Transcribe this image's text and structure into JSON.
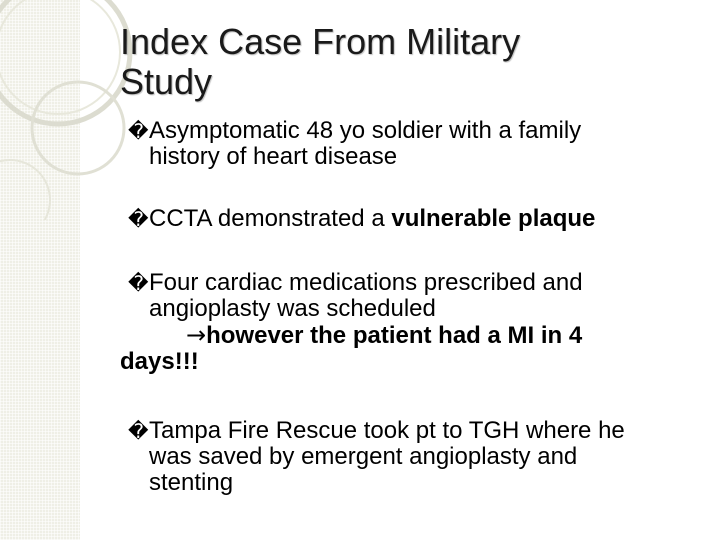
{
  "slide": {
    "title_line1": "Index Case From Military",
    "title_line2": "Study",
    "bullet_glyph": "�",
    "bullets": {
      "b1": {
        "line1": "Asymptomatic 48 yo soldier with a family",
        "line2": "history of heart disease"
      },
      "b2": {
        "text": "CCTA demonstrated a ",
        "bold": "vulnerable plaque"
      },
      "b3": {
        "line1": "Four cardiac medications prescribed and",
        "line2": "angioplasty was scheduled",
        "arrow": "→",
        "bold_line3": "however the patient had a MI in 4",
        "bold_line4": "days!!!"
      },
      "b4": {
        "line1": "Tampa Fire Rescue took pt to TGH where he",
        "line2": "was saved by emergent angioplasty and",
        "line3": "stenting"
      }
    },
    "colors": {
      "band": "#efefe6",
      "ring": "#dcdcd0",
      "title": "#1a1a1a"
    }
  }
}
